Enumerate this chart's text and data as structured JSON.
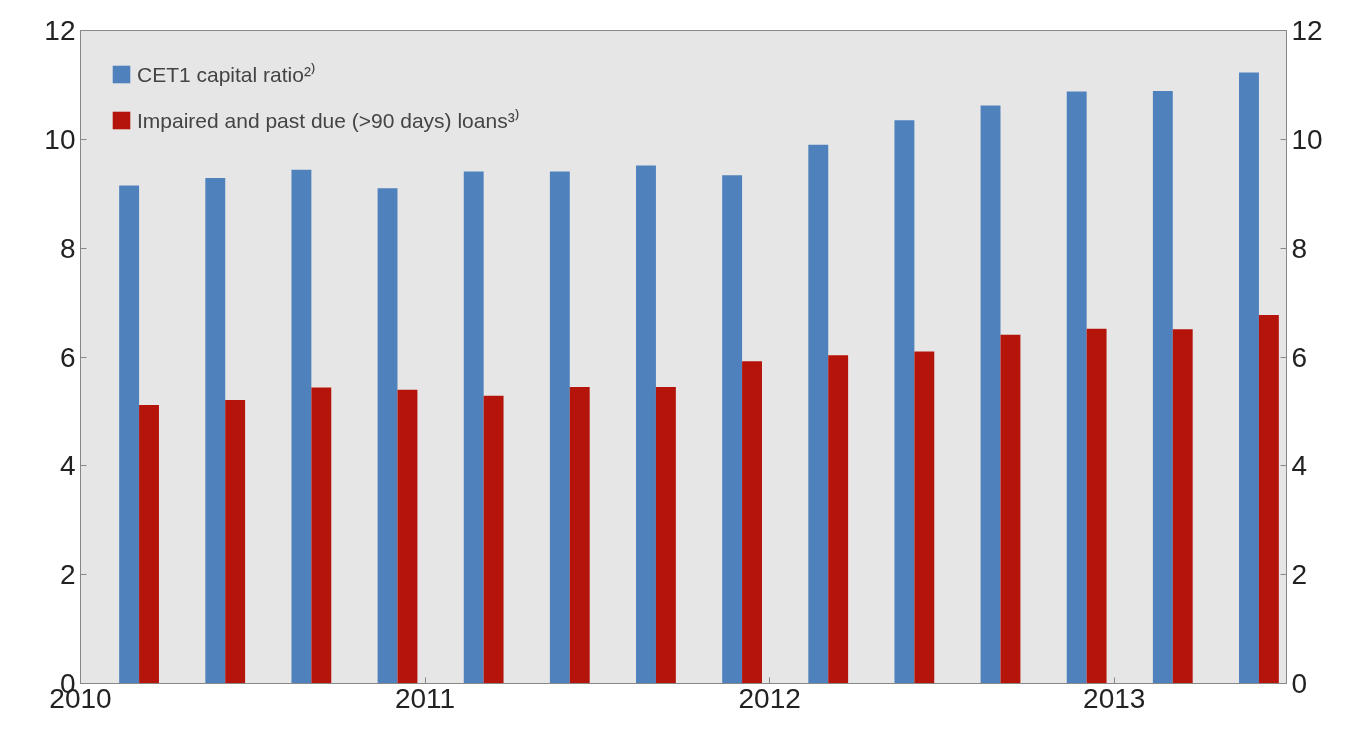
{
  "chart_data": {
    "type": "bar",
    "x": [
      2010.17,
      2010.42,
      2010.67,
      2010.92,
      2011.17,
      2011.42,
      2011.67,
      2011.92,
      2012.17,
      2012.42,
      2012.67,
      2012.92,
      2013.17,
      2013.42
    ],
    "series": [
      {
        "name": "CET1 capital ratio²⁾",
        "color": "#4f81bd",
        "values": [
          9.15,
          9.29,
          9.44,
          9.1,
          9.41,
          9.41,
          9.52,
          9.34,
          9.9,
          10.35,
          10.62,
          10.88,
          10.89,
          11.23
        ]
      },
      {
        "name": "Impaired and past due (>90 days) loans³⁾",
        "color": "#b5140b",
        "values": [
          5.12,
          5.21,
          5.44,
          5.4,
          5.29,
          5.45,
          5.45,
          5.92,
          6.03,
          6.1,
          6.41,
          6.52,
          6.51,
          6.77
        ]
      }
    ],
    "xlim": [
      2010,
      2013.5
    ],
    "xticks": [
      2010,
      2011,
      2012,
      2013
    ],
    "ylim": [
      0,
      12
    ],
    "yticks": [
      0,
      2,
      4,
      6,
      8,
      10,
      12
    ],
    "y2lim": [
      0,
      12
    ],
    "y2ticks": [
      0,
      2,
      4,
      6,
      8,
      10,
      12
    ],
    "grid": false,
    "legend": "top left"
  }
}
